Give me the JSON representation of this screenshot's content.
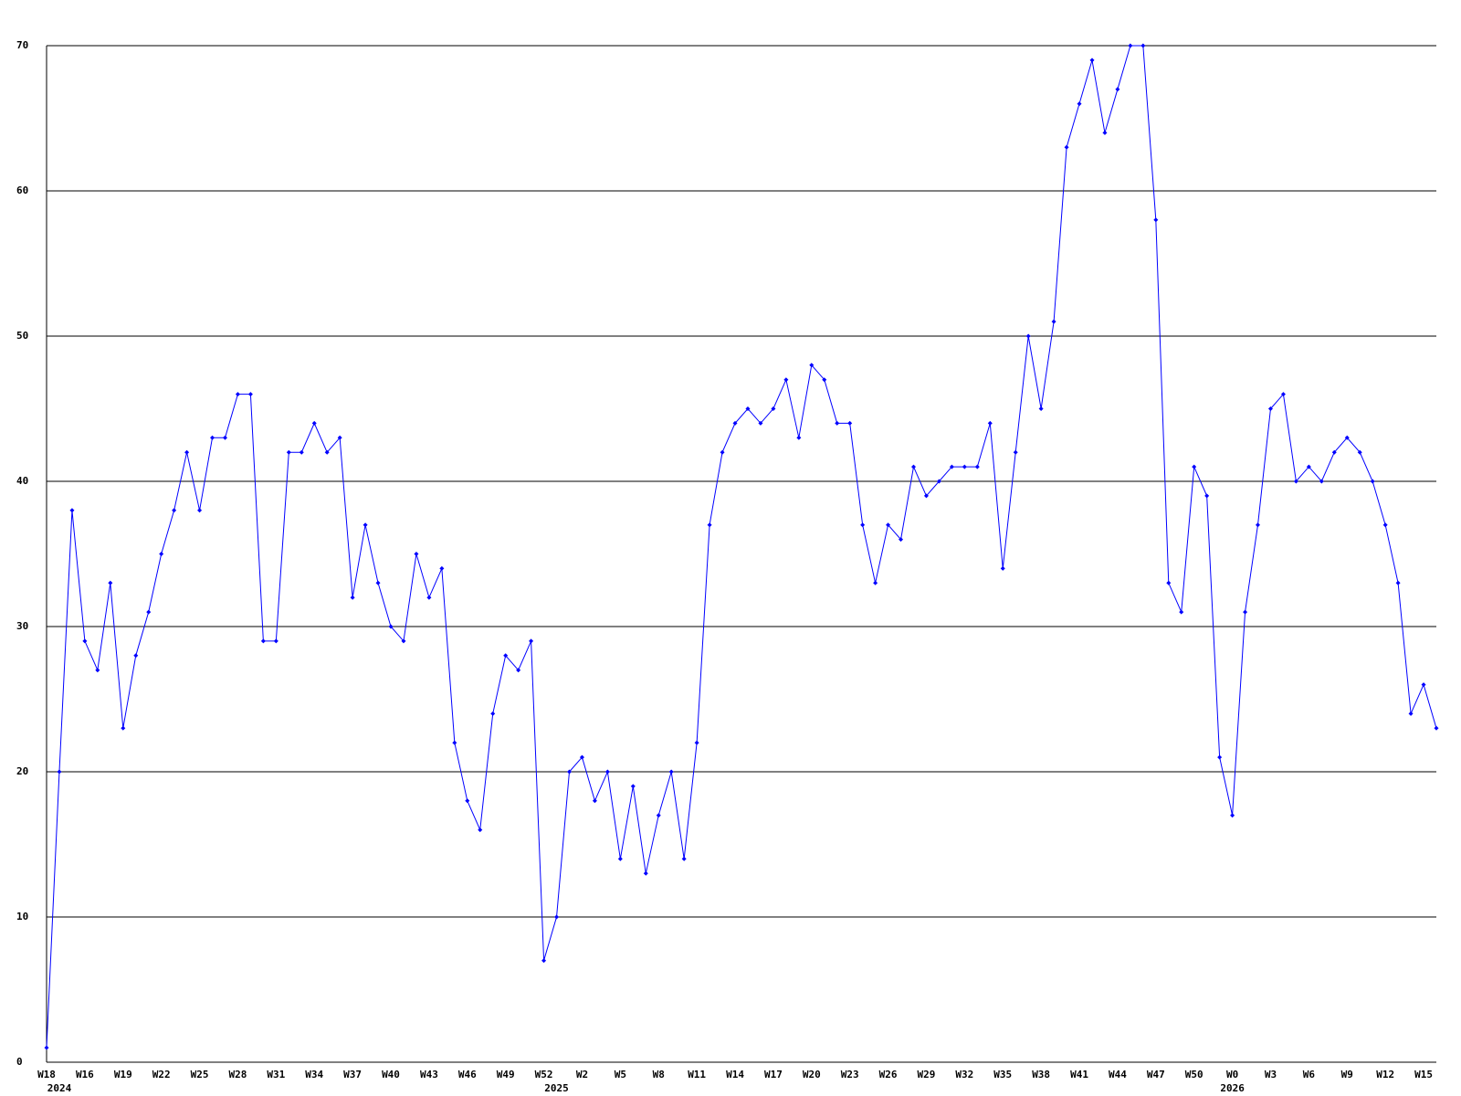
{
  "chart_data": {
    "type": "line",
    "categories": [
      "W18",
      null,
      null,
      "W16",
      null,
      null,
      "W19",
      null,
      null,
      "W22",
      null,
      null,
      "W25",
      null,
      null,
      "W28",
      null,
      null,
      "W31",
      null,
      null,
      "W34",
      null,
      null,
      "W37",
      null,
      null,
      "W40",
      null,
      null,
      "W43",
      null,
      null,
      "W46",
      null,
      null,
      "W49",
      null,
      null,
      "W52",
      null,
      null,
      "W2",
      null,
      null,
      "W5",
      null,
      null,
      "W8",
      null,
      null,
      "W11",
      null,
      null,
      "W14",
      null,
      null,
      "W17",
      null,
      null,
      "W20",
      null,
      null,
      "W23",
      null,
      null,
      "W26",
      null,
      null,
      "W29",
      null,
      null,
      "W32",
      null,
      null,
      "W35",
      null,
      null,
      "W38",
      null,
      null,
      "W41",
      null,
      null,
      "W44",
      null,
      null,
      "W47",
      null,
      null,
      "W50",
      null,
      null,
      "W0",
      null,
      null,
      "W3",
      null,
      null,
      "W6",
      null,
      null,
      "W9",
      null,
      null,
      "W12",
      null,
      null,
      "W15",
      null
    ],
    "year_labels": [
      null,
      "2024",
      null,
      null,
      null,
      null,
      null,
      null,
      null,
      null,
      null,
      null,
      null,
      null,
      null,
      null,
      null,
      null,
      null,
      null,
      null,
      null,
      null,
      null,
      null,
      null,
      null,
      null,
      null,
      null,
      null,
      null,
      null,
      null,
      null,
      null,
      null,
      null,
      null,
      null,
      "2025",
      null,
      null,
      null,
      null,
      null,
      null,
      null,
      null,
      null,
      null,
      null,
      null,
      null,
      null,
      null,
      null,
      null,
      null,
      null,
      null,
      null,
      null,
      null,
      null,
      null,
      null,
      null,
      null,
      null,
      null,
      null,
      null,
      null,
      null,
      null,
      null,
      null,
      null,
      null,
      null,
      null,
      null,
      null,
      null,
      null,
      null,
      null,
      null,
      null,
      null,
      null,
      null,
      "2026",
      null,
      null,
      null,
      null,
      null,
      null,
      null,
      null,
      null,
      null,
      null,
      null,
      null,
      null,
      null,
      null
    ],
    "series": [
      {
        "color": "#0000ff",
        "values": [
          1,
          20,
          38,
          29,
          27,
          33,
          23,
          28,
          31,
          35,
          38,
          42,
          38,
          43,
          43,
          46,
          46,
          29,
          29,
          42,
          42,
          44,
          42,
          43,
          32,
          37,
          33,
          30,
          29,
          35,
          32,
          34,
          22,
          18,
          16,
          24,
          28,
          27,
          29,
          7,
          10,
          20,
          21,
          18,
          20,
          14,
          19,
          13,
          17,
          20,
          14,
          22,
          37,
          42,
          44,
          45,
          44,
          45,
          47,
          43,
          48,
          47,
          44,
          44,
          37,
          33,
          37,
          36,
          41,
          39,
          40,
          41,
          41,
          41,
          44,
          34,
          42,
          50,
          45,
          51,
          63,
          66,
          69,
          64,
          67,
          70,
          70,
          58,
          33,
          31,
          41,
          39,
          21,
          17,
          31,
          37,
          45,
          46,
          40,
          41,
          40,
          42,
          43,
          42,
          40,
          37,
          33,
          24,
          26,
          23
        ]
      }
    ],
    "ylim": [
      0,
      70
    ],
    "yticks": [
      0,
      10,
      20,
      30,
      40,
      50,
      60,
      70
    ],
    "grid": true
  }
}
